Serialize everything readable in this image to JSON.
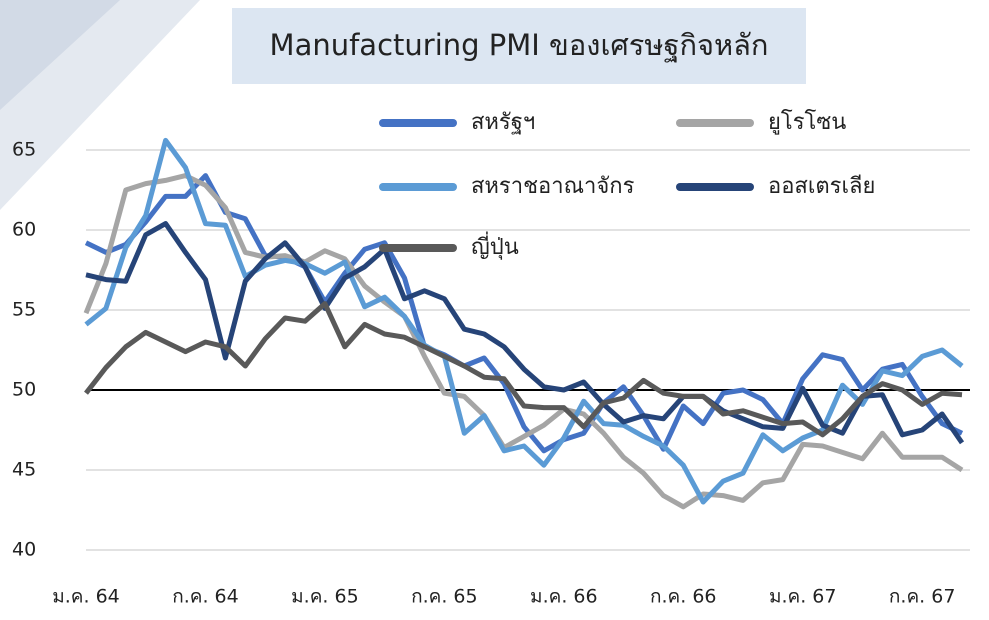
{
  "chart_data": {
    "type": "line",
    "title": "Manufacturing PMI ของเศรษฐกิจหลัก",
    "categories": [
      "ม.ค. 64",
      null,
      null,
      null,
      null,
      null,
      "ก.ค. 64",
      null,
      null,
      null,
      null,
      null,
      "ม.ค. 65",
      null,
      null,
      null,
      null,
      null,
      "ก.ค. 65",
      null,
      null,
      null,
      null,
      null,
      "ม.ค. 66",
      null,
      null,
      null,
      null,
      null,
      "ก.ค. 66",
      null,
      null,
      null,
      null,
      null,
      "ม.ค. 67",
      null,
      null,
      null,
      null,
      null,
      "ก.ค. 67",
      null,
      null
    ],
    "series": [
      {
        "name": "สหรัฐฯ",
        "color": "#4472c4",
        "values": [
          59.2,
          58.6,
          59.1,
          60.5,
          62.1,
          62.1,
          63.4,
          61.1,
          60.7,
          58.4,
          58.3,
          57.7,
          55.5,
          57.3,
          58.8,
          59.2,
          57.0,
          52.7,
          52.2,
          51.5,
          52.0,
          50.4,
          47.7,
          46.2,
          46.9,
          47.3,
          49.2,
          50.2,
          48.4,
          46.3,
          49.0,
          47.9,
          49.8,
          50.0,
          49.4,
          47.9,
          50.7,
          52.2,
          51.9,
          50.0,
          51.3,
          51.6,
          49.6,
          47.9,
          47.3
        ]
      },
      {
        "name": "ยูโรโซน",
        "color": "#a5a5a5",
        "values": [
          54.8,
          57.9,
          62.5,
          62.9,
          63.1,
          63.4,
          62.8,
          61.4,
          58.6,
          58.3,
          58.4,
          58.0,
          58.7,
          58.2,
          56.5,
          55.5,
          54.6,
          52.1,
          49.8,
          49.6,
          48.4,
          46.4,
          47.1,
          47.8,
          48.8,
          48.5,
          47.3,
          45.8,
          44.8,
          43.4,
          42.7,
          43.5,
          43.4,
          43.1,
          44.2,
          44.4,
          46.6,
          46.5,
          46.1,
          45.7,
          47.3,
          45.8,
          45.8,
          45.8,
          45.0
        ]
      },
      {
        "name": "สหราชอาณาจักร",
        "color": "#5b9bd5",
        "values": [
          54.1,
          55.1,
          58.9,
          60.9,
          65.6,
          63.9,
          60.4,
          60.3,
          57.1,
          57.8,
          58.1,
          57.9,
          57.3,
          58.0,
          55.2,
          55.8,
          54.6,
          52.8,
          52.1,
          47.3,
          48.4,
          46.2,
          46.5,
          45.3,
          47.0,
          49.3,
          47.9,
          47.8,
          47.1,
          46.5,
          45.3,
          43.0,
          44.3,
          44.8,
          47.2,
          46.2,
          47.0,
          47.5,
          50.3,
          49.1,
          51.2,
          50.9,
          52.1,
          52.5,
          51.5
        ]
      },
      {
        "name": "ออสเตรเลีย",
        "color": "#264478",
        "values": [
          57.2,
          56.9,
          56.8,
          59.7,
          60.4,
          58.6,
          56.9,
          52.0,
          56.8,
          58.2,
          59.2,
          57.7,
          55.1,
          57.0,
          57.7,
          58.8,
          55.7,
          56.2,
          55.7,
          53.8,
          53.5,
          52.7,
          51.3,
          50.2,
          50.0,
          50.5,
          49.1,
          48.0,
          48.4,
          48.2,
          49.6,
          49.6,
          48.7,
          48.2,
          47.7,
          47.6,
          50.1,
          47.8,
          47.3,
          49.6,
          49.7,
          47.2,
          47.5,
          48.5,
          46.7
        ]
      },
      {
        "name": "ญี่ปุ่น",
        "color": "#595959",
        "values": [
          49.8,
          51.4,
          52.7,
          53.6,
          53.0,
          52.4,
          53.0,
          52.7,
          51.5,
          53.2,
          54.5,
          54.3,
          55.4,
          52.7,
          54.1,
          53.5,
          53.3,
          52.7,
          52.1,
          51.5,
          50.8,
          50.7,
          49.0,
          48.9,
          48.9,
          47.7,
          49.2,
          49.5,
          50.6,
          49.8,
          49.6,
          49.6,
          48.5,
          48.7,
          48.3,
          47.9,
          48.0,
          47.2,
          48.2,
          49.6,
          50.4,
          50.0,
          49.1,
          49.8,
          49.7
        ]
      }
    ],
    "ylim": [
      40,
      66
    ],
    "yticks": [
      40,
      45,
      50,
      55,
      60,
      65
    ],
    "grid": true,
    "baseline": 50
  }
}
